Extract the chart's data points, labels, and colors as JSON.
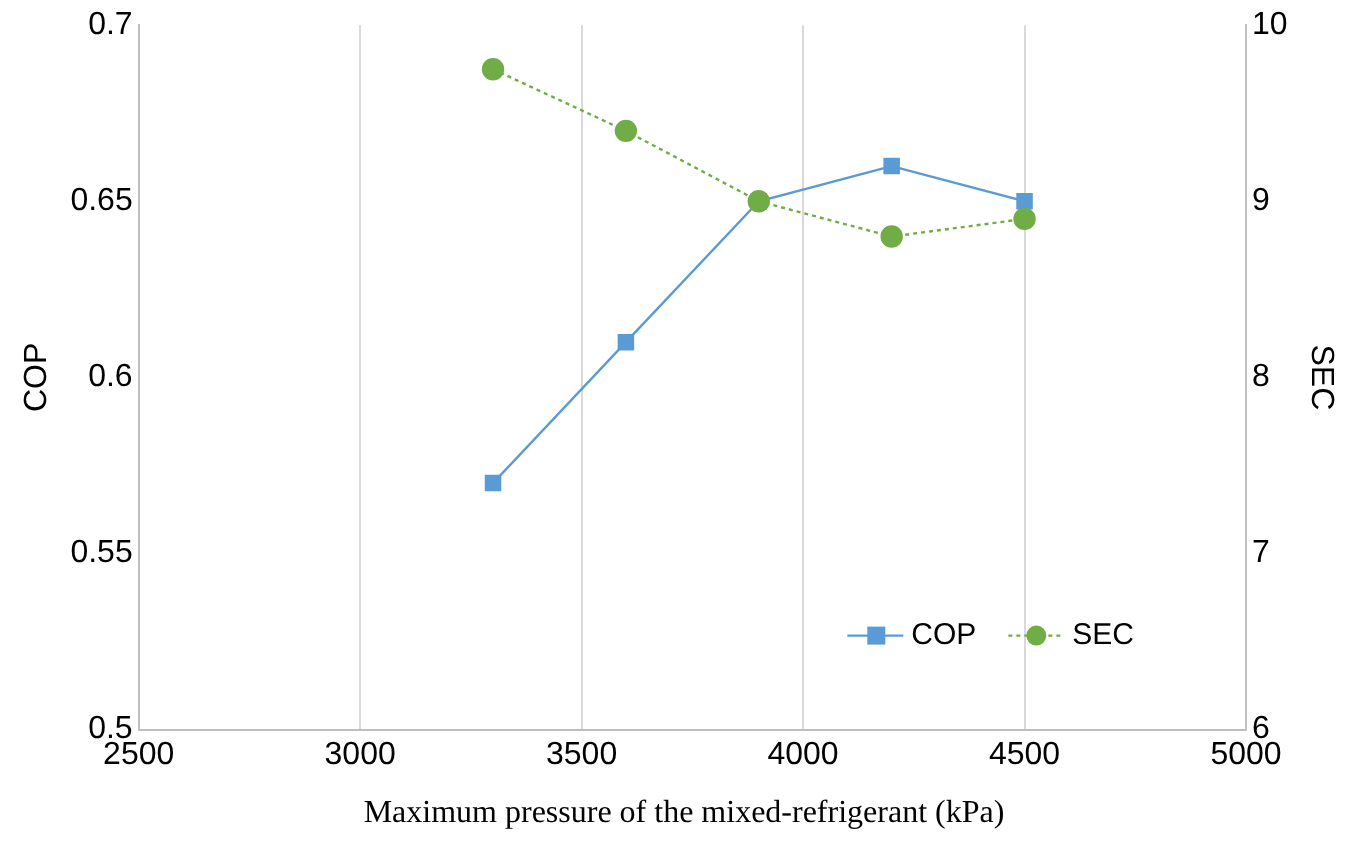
{
  "chart_data": {
    "type": "line",
    "xlabel": "Maximum pressure of the mixed-refrigerant (kPa)",
    "ylabel": "COP",
    "y2label": "SEC",
    "x": [
      3300,
      3600,
      3900,
      4200,
      4500
    ],
    "xlim": [
      2500,
      5000
    ],
    "xticks": [
      2500,
      3000,
      3500,
      4000,
      4500,
      5000
    ],
    "ylim": [
      0.5,
      0.7
    ],
    "yticks": [
      0.5,
      0.55,
      0.6,
      0.65,
      0.7
    ],
    "y2lim": [
      6,
      10
    ],
    "y2ticks": [
      6,
      7,
      8,
      9,
      10
    ],
    "grid": "x",
    "legend": "bottom right",
    "series": [
      {
        "name": "COP",
        "color": "#5b9bd5",
        "values": [
          0.57,
          0.61,
          0.65,
          0.66,
          0.65
        ],
        "marker": "square",
        "line_style": "solid"
      },
      {
        "name": "SEC",
        "color": "#70ad47",
        "values": [
          9.75,
          9.4,
          9.0,
          8.8,
          8.9
        ],
        "axis": "y2",
        "marker": "circle",
        "line_style": "dotted"
      }
    ]
  }
}
